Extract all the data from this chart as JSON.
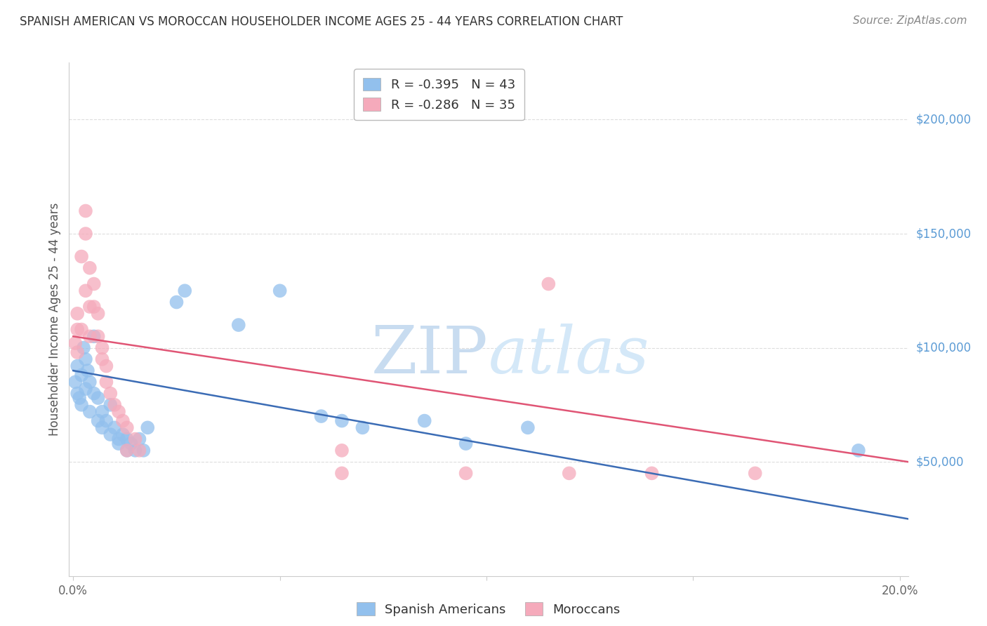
{
  "title": "SPANISH AMERICAN VS MOROCCAN HOUSEHOLDER INCOME AGES 25 - 44 YEARS CORRELATION CHART",
  "source": "Source: ZipAtlas.com",
  "ylabel": "Householder Income Ages 25 - 44 years",
  "y_tick_labels": [
    "$50,000",
    "$100,000",
    "$150,000",
    "$200,000"
  ],
  "y_tick_values": [
    50000,
    100000,
    150000,
    200000
  ],
  "xlim": [
    -0.001,
    0.202
  ],
  "ylim": [
    0,
    225000
  ],
  "legend_label_blue": "R = -0.395   N = 43",
  "legend_label_pink": "R = -0.286   N = 35",
  "bottom_legend_blue": "Spanish Americans",
  "bottom_legend_pink": "Moroccans",
  "blue_color": "#92C0ED",
  "pink_color": "#F5AABB",
  "blue_line_color": "#3B6CB5",
  "pink_line_color": "#E05575",
  "blue_scatter": [
    [
      0.0005,
      85000
    ],
    [
      0.001,
      80000
    ],
    [
      0.001,
      92000
    ],
    [
      0.0015,
      78000
    ],
    [
      0.002,
      88000
    ],
    [
      0.002,
      75000
    ],
    [
      0.0025,
      100000
    ],
    [
      0.003,
      95000
    ],
    [
      0.003,
      82000
    ],
    [
      0.0035,
      90000
    ],
    [
      0.004,
      85000
    ],
    [
      0.004,
      72000
    ],
    [
      0.005,
      105000
    ],
    [
      0.005,
      80000
    ],
    [
      0.006,
      78000
    ],
    [
      0.006,
      68000
    ],
    [
      0.007,
      72000
    ],
    [
      0.007,
      65000
    ],
    [
      0.008,
      68000
    ],
    [
      0.009,
      62000
    ],
    [
      0.009,
      75000
    ],
    [
      0.01,
      65000
    ],
    [
      0.011,
      60000
    ],
    [
      0.011,
      58000
    ],
    [
      0.012,
      62000
    ],
    [
      0.013,
      60000
    ],
    [
      0.013,
      55000
    ],
    [
      0.014,
      58000
    ],
    [
      0.015,
      55000
    ],
    [
      0.016,
      60000
    ],
    [
      0.017,
      55000
    ],
    [
      0.018,
      65000
    ],
    [
      0.025,
      120000
    ],
    [
      0.027,
      125000
    ],
    [
      0.04,
      110000
    ],
    [
      0.05,
      125000
    ],
    [
      0.06,
      70000
    ],
    [
      0.065,
      68000
    ],
    [
      0.07,
      65000
    ],
    [
      0.085,
      68000
    ],
    [
      0.095,
      58000
    ],
    [
      0.11,
      65000
    ],
    [
      0.19,
      55000
    ]
  ],
  "pink_scatter": [
    [
      0.0005,
      102000
    ],
    [
      0.001,
      108000
    ],
    [
      0.001,
      98000
    ],
    [
      0.001,
      115000
    ],
    [
      0.002,
      140000
    ],
    [
      0.002,
      108000
    ],
    [
      0.003,
      160000
    ],
    [
      0.003,
      150000
    ],
    [
      0.003,
      125000
    ],
    [
      0.004,
      135000
    ],
    [
      0.004,
      118000
    ],
    [
      0.004,
      105000
    ],
    [
      0.005,
      128000
    ],
    [
      0.005,
      118000
    ],
    [
      0.006,
      115000
    ],
    [
      0.006,
      105000
    ],
    [
      0.007,
      100000
    ],
    [
      0.007,
      95000
    ],
    [
      0.008,
      92000
    ],
    [
      0.008,
      85000
    ],
    [
      0.009,
      80000
    ],
    [
      0.01,
      75000
    ],
    [
      0.011,
      72000
    ],
    [
      0.012,
      68000
    ],
    [
      0.013,
      65000
    ],
    [
      0.013,
      55000
    ],
    [
      0.015,
      60000
    ],
    [
      0.016,
      55000
    ],
    [
      0.065,
      45000
    ],
    [
      0.065,
      55000
    ],
    [
      0.095,
      45000
    ],
    [
      0.115,
      128000
    ],
    [
      0.12,
      45000
    ],
    [
      0.14,
      45000
    ],
    [
      0.165,
      45000
    ]
  ],
  "blue_line_x": [
    0.0,
    0.202
  ],
  "blue_line_y": [
    90000,
    25000
  ],
  "pink_line_x": [
    0.0,
    0.202
  ],
  "pink_line_y": [
    105000,
    50000
  ],
  "background_color": "#FFFFFF",
  "grid_color": "#DDDDDD"
}
